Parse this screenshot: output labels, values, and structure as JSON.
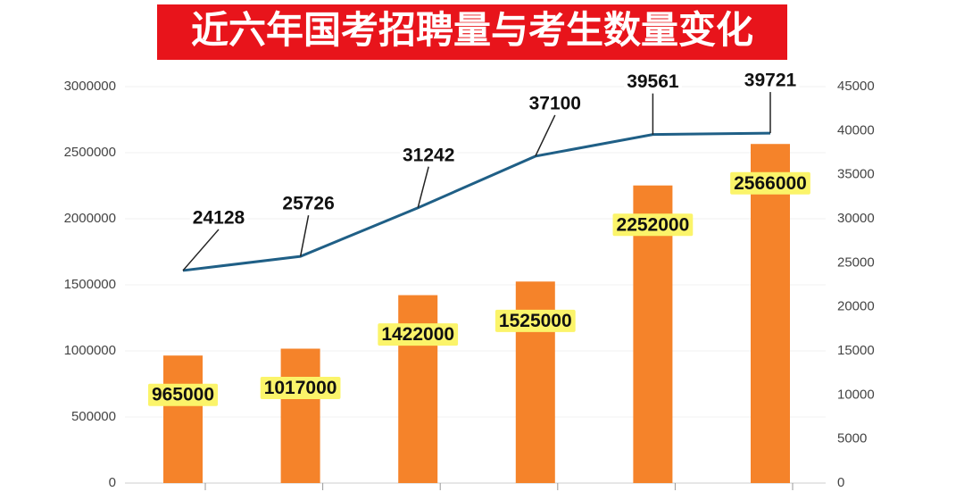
{
  "chart_data": {
    "type": "bar",
    "title": "近六年国考招聘量与考生数量变化",
    "categories": [
      null,
      null,
      null,
      null,
      null,
      null
    ],
    "series": [
      {
        "type": "bar",
        "color": "#f5832a",
        "values": [
          965000,
          1017000,
          1422000,
          1525000,
          2252000,
          2566000
        ]
      },
      {
        "type": "line",
        "axis": "y2",
        "color": "#1f5f86",
        "values": [
          24128,
          25726,
          31242,
          37100,
          39561,
          39721
        ]
      }
    ],
    "ylim": [
      0,
      3000000
    ],
    "yticks": [
      0,
      500000,
      1000000,
      1500000,
      2000000,
      2500000,
      3000000
    ],
    "y2lim": [
      0,
      45000
    ],
    "y2ticks": [
      0,
      5000,
      10000,
      15000,
      20000,
      25000,
      30000,
      35000,
      40000,
      45000
    ],
    "grid": true
  }
}
